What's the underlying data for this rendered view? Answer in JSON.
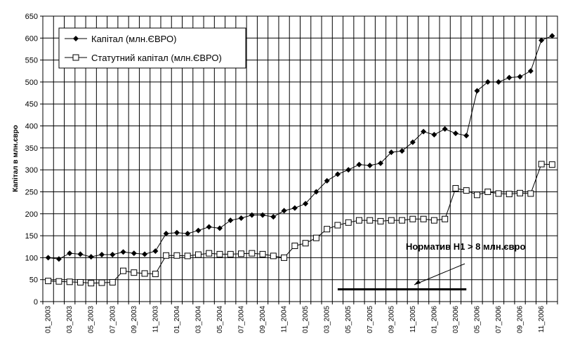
{
  "chart_data": {
    "type": "line",
    "y_label": "Капітал в млн.євро",
    "categories": [
      "01_2003",
      null,
      "03_2003",
      null,
      "05_2003",
      null,
      "07_2003",
      null,
      "09_2003",
      null,
      "11_2003",
      null,
      "01_2004",
      null,
      "03_2004",
      null,
      "05_2004",
      null,
      "07_2004",
      null,
      "09_2004",
      null,
      "11_2004",
      null,
      "01_2005",
      null,
      "03_2005",
      null,
      "05_2005",
      null,
      "07_2005",
      null,
      "09_2005",
      null,
      "11_2005",
      null,
      "01_2006",
      null,
      "03_2006",
      null,
      "05_2006",
      null,
      "07_2006",
      null,
      "09_2006",
      null,
      "11_2006",
      null
    ],
    "series": [
      {
        "name": "Капітал (млн.ЄВРО)",
        "color": "#000000",
        "marker": "diamond",
        "values": [
          100,
          97,
          110,
          108,
          102,
          107,
          107,
          113,
          110,
          108,
          115,
          155,
          157,
          155,
          162,
          170,
          167,
          185,
          190,
          197,
          197,
          193,
          207,
          213,
          223,
          250,
          275,
          290,
          300,
          312,
          310,
          315,
          340,
          343,
          363,
          387,
          380,
          393,
          383,
          378,
          480,
          500,
          500,
          510,
          512,
          525,
          595,
          605
        ]
      },
      {
        "name": "Статутний капітал (млн.ЄВРО)",
        "color": "#000000",
        "marker": "square",
        "values": [
          47,
          46,
          45,
          44,
          42,
          43,
          44,
          70,
          66,
          64,
          63,
          105,
          105,
          104,
          107,
          110,
          108,
          108,
          109,
          110,
          108,
          104,
          100,
          127,
          133,
          145,
          165,
          174,
          180,
          185,
          185,
          183,
          185,
          185,
          188,
          188,
          185,
          188,
          258,
          253,
          243,
          250,
          246,
          245,
          247,
          246,
          313,
          312
        ]
      }
    ],
    "reference_line": {
      "color": "#000000",
      "values": [
        null,
        null,
        null,
        null,
        null,
        null,
        null,
        null,
        null,
        null,
        null,
        null,
        null,
        null,
        null,
        null,
        null,
        null,
        null,
        null,
        null,
        null,
        null,
        null,
        null,
        null,
        null,
        28,
        28,
        28,
        28,
        28,
        28,
        28,
        28,
        28,
        28,
        28,
        28,
        28,
        null,
        null,
        null,
        null,
        null,
        null,
        null,
        null
      ]
    },
    "annotation": "Норматив Н1 > 8 млн.євро",
    "ylim": [
      0,
      650
    ],
    "yticks": [
      0,
      50,
      100,
      150,
      200,
      250,
      300,
      350,
      400,
      450,
      500,
      550,
      600,
      650
    ],
    "grid": true,
    "legend": "upper left"
  }
}
